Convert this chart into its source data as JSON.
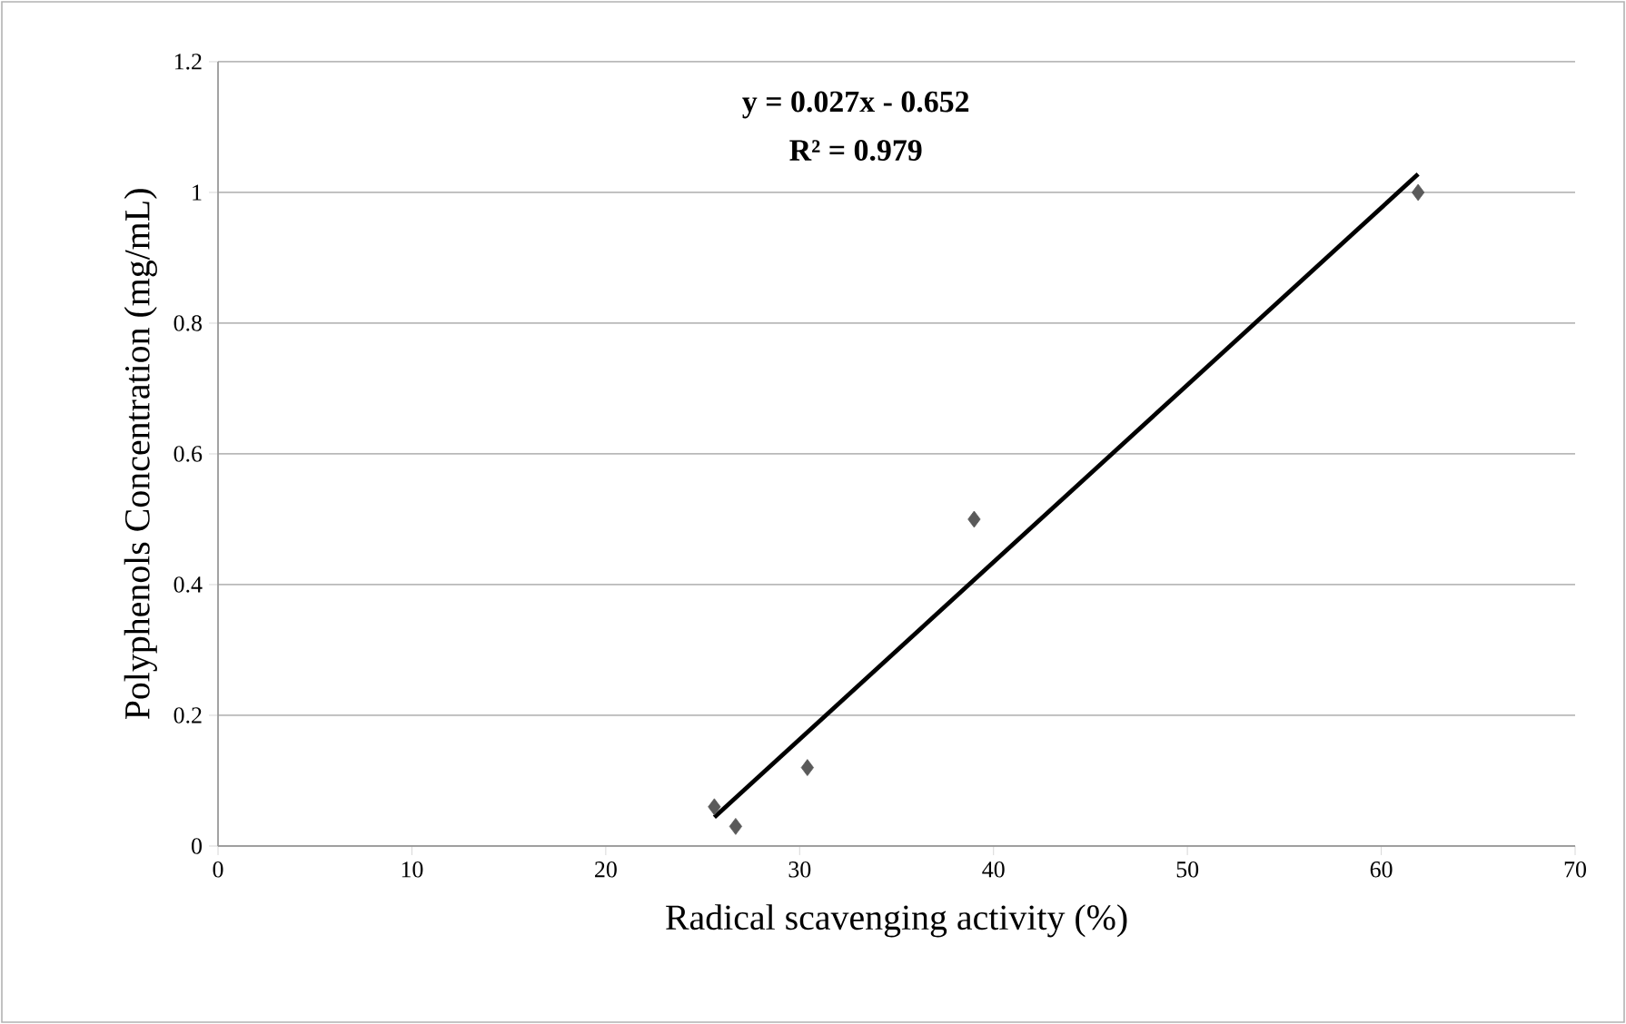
{
  "chart_data": {
    "type": "scatter",
    "xlabel": "Radical scavenging activity (%)",
    "ylabel": "Polyphenols Concentration (mg/mL)",
    "annotations": [
      "y = 0.027x - 0.652",
      "R² = 0.979"
    ],
    "series": [
      {
        "color": "#5a5a5a",
        "marker": "diamond",
        "x": [
          25.6,
          26.7,
          30.4,
          39.0,
          61.9
        ],
        "values": [
          0.06,
          0.03,
          0.12,
          0.5,
          1.0
        ]
      },
      {
        "type": "line",
        "color": "#000000",
        "marker": "none",
        "line_style": "solid",
        "x": [
          25.6,
          61.9
        ],
        "values": [
          0.044,
          1.028
        ]
      }
    ],
    "xlim": [
      0,
      70
    ],
    "xticks": [
      0,
      10,
      20,
      30,
      40,
      50,
      60,
      70
    ],
    "ylim": [
      0,
      1.2
    ],
    "yticks": [
      0,
      0.2,
      0.4,
      0.6,
      0.8,
      1,
      1.2
    ],
    "grid": "y"
  }
}
